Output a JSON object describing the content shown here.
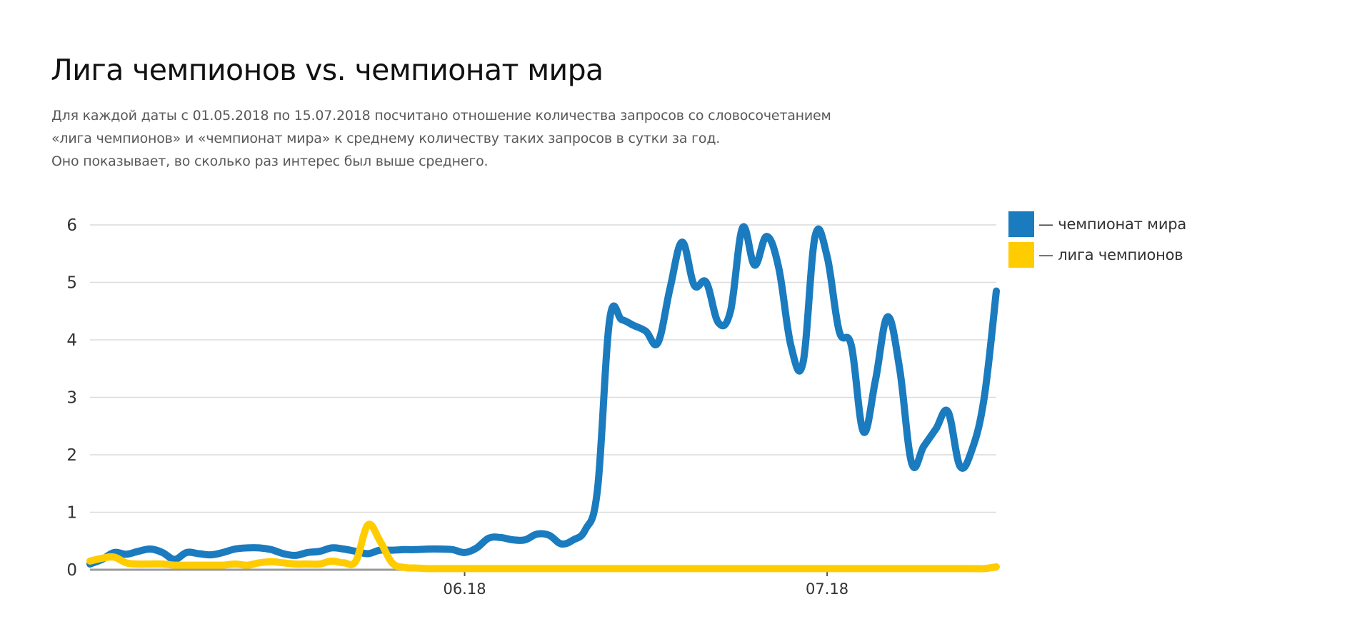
{
  "colors": {
    "series_1": "#1a7bbf",
    "series_2": "#ffcc00",
    "grid": "#dcdcdc",
    "baseline": "#9a9a9a",
    "tick_text": "#333333"
  },
  "legend": {
    "items": [
      {
        "label": "— чемпионат мира",
        "color": "#1a7bbf"
      },
      {
        "label": "— лига чемпионов",
        "color": "#ffcc00"
      }
    ]
  },
  "chart_data": {
    "type": "line",
    "title": "Лига чемпионов vs. чемпионат мира",
    "subtitle_lines": [
      "Для каждой даты с 01.05.2018 по 15.07.2018 посчитано отношение количества запросов со словосочетанием",
      "«лига чемпионов» и «чемпионат мира» к среднему количеству таких запросов в сутки за год.",
      "Оно показывает, во сколько раз интерес был выше среднего."
    ],
    "xlabel": "",
    "ylabel": "",
    "x": [
      "01.05.2018",
      "02.05.2018",
      "03.05.2018",
      "04.05.2018",
      "05.05.2018",
      "06.05.2018",
      "07.05.2018",
      "08.05.2018",
      "09.05.2018",
      "10.05.2018",
      "11.05.2018",
      "12.05.2018",
      "13.05.2018",
      "14.05.2018",
      "15.05.2018",
      "16.05.2018",
      "17.05.2018",
      "18.05.2018",
      "19.05.2018",
      "20.05.2018",
      "21.05.2018",
      "22.05.2018",
      "23.05.2018",
      "24.05.2018",
      "25.05.2018",
      "26.05.2018",
      "27.05.2018",
      "28.05.2018",
      "29.05.2018",
      "30.05.2018",
      "31.05.2018",
      "01.06.2018",
      "02.06.2018",
      "03.06.2018",
      "04.06.2018",
      "05.06.2018",
      "06.06.2018",
      "07.06.2018",
      "08.06.2018",
      "09.06.2018",
      "10.06.2018",
      "11.06.2018",
      "12.06.2018",
      "13.06.2018",
      "14.06.2018",
      "15.06.2018",
      "16.06.2018",
      "17.06.2018",
      "18.06.2018",
      "19.06.2018",
      "20.06.2018",
      "21.06.2018",
      "22.06.2018",
      "23.06.2018",
      "24.06.2018",
      "25.06.2018",
      "26.06.2018",
      "27.06.2018",
      "28.06.2018",
      "29.06.2018",
      "30.06.2018",
      "01.07.2018",
      "02.07.2018",
      "03.07.2018",
      "04.07.2018",
      "05.07.2018",
      "06.07.2018",
      "07.07.2018",
      "08.07.2018",
      "09.07.2018",
      "10.07.2018",
      "11.07.2018",
      "12.07.2018",
      "13.07.2018",
      "14.07.2018",
      "15.07.2018"
    ],
    "x_tick_labels": [
      "06.18",
      "07.18"
    ],
    "x_tick_dates": [
      "01.06.2018",
      "01.07.2018"
    ],
    "ylim": [
      0,
      6
    ],
    "y_ticks": [
      0,
      1,
      2,
      3,
      4,
      5,
      6
    ],
    "grid": true,
    "legend_position": "right",
    "series": [
      {
        "name": "— чемпионат мира",
        "color": "#1a7bbf",
        "values": [
          0.1,
          0.18,
          0.3,
          0.27,
          0.32,
          0.36,
          0.3,
          0.18,
          0.3,
          0.28,
          0.26,
          0.3,
          0.36,
          0.38,
          0.38,
          0.35,
          0.28,
          0.25,
          0.3,
          0.32,
          0.38,
          0.36,
          0.32,
          0.28,
          0.34,
          0.34,
          0.35,
          0.35,
          0.36,
          0.36,
          0.35,
          0.3,
          0.38,
          0.55,
          0.56,
          0.52,
          0.52,
          0.62,
          0.6,
          0.45,
          0.52,
          0.7,
          1.4,
          4.35,
          4.35,
          4.25,
          4.15,
          3.95,
          4.9,
          5.7,
          4.95,
          5.0,
          4.3,
          4.5,
          5.95,
          5.3,
          5.8,
          5.25,
          3.9,
          3.6,
          5.8,
          5.45,
          4.15,
          3.9,
          2.4,
          3.3,
          4.4,
          3.5,
          1.85,
          2.15,
          2.45,
          2.75,
          1.8,
          2.1,
          3.0,
          4.85
        ]
      },
      {
        "name": "— лига чемпионов",
        "color": "#ffcc00",
        "values": [
          0.15,
          0.2,
          0.22,
          0.12,
          0.1,
          0.1,
          0.1,
          0.08,
          0.08,
          0.08,
          0.08,
          0.08,
          0.1,
          0.08,
          0.12,
          0.14,
          0.12,
          0.1,
          0.1,
          0.1,
          0.15,
          0.12,
          0.15,
          0.78,
          0.5,
          0.12,
          0.04,
          0.03,
          0.02,
          0.02,
          0.02,
          0.02,
          0.02,
          0.02,
          0.02,
          0.02,
          0.02,
          0.02,
          0.02,
          0.02,
          0.02,
          0.02,
          0.02,
          0.02,
          0.02,
          0.02,
          0.02,
          0.02,
          0.02,
          0.02,
          0.02,
          0.02,
          0.02,
          0.02,
          0.02,
          0.02,
          0.02,
          0.02,
          0.02,
          0.02,
          0.02,
          0.02,
          0.02,
          0.02,
          0.02,
          0.02,
          0.02,
          0.02,
          0.02,
          0.02,
          0.02,
          0.02,
          0.02,
          0.02,
          0.02,
          0.05
        ]
      }
    ]
  }
}
